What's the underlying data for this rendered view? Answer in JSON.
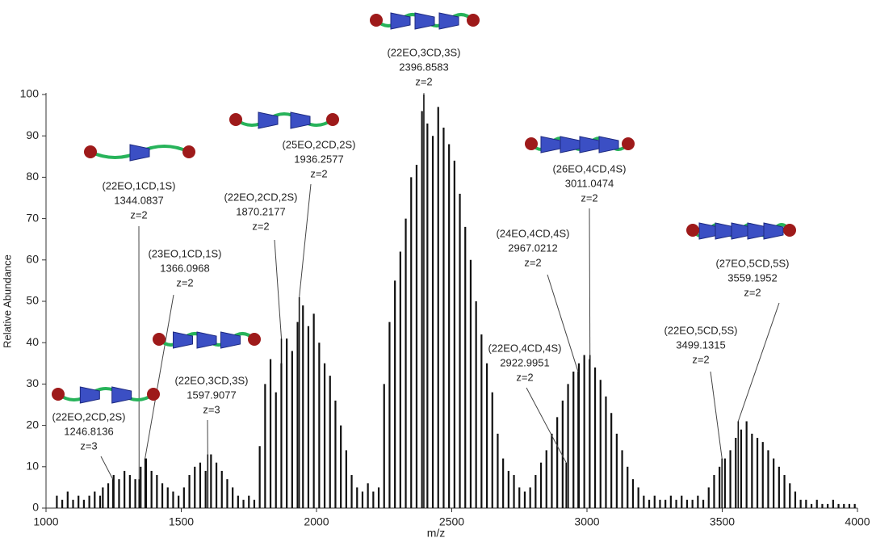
{
  "chart_data": {
    "type": "spectrum",
    "x_label": "m/z",
    "y_label": "Relative Abundance",
    "xlim": [
      1000,
      4000
    ],
    "xticks": [
      1000,
      1500,
      2000,
      2500,
      3000,
      3500,
      4000
    ],
    "ylim": [
      0,
      100
    ],
    "yticks": [
      0,
      10,
      20,
      30,
      40,
      50,
      60,
      70,
      80,
      90,
      100
    ],
    "color": "#111111",
    "x": [
      1040,
      1060,
      1080,
      1100,
      1120,
      1140,
      1160,
      1180,
      1200,
      1210,
      1230,
      1250,
      1270,
      1290,
      1310,
      1330,
      1350,
      1370,
      1390,
      1410,
      1430,
      1450,
      1470,
      1490,
      1510,
      1530,
      1550,
      1570,
      1590,
      1610,
      1630,
      1650,
      1670,
      1690,
      1710,
      1730,
      1750,
      1770,
      1790,
      1810,
      1830,
      1850,
      1870,
      1890,
      1910,
      1930,
      1950,
      1970,
      1990,
      2010,
      2030,
      2050,
      2070,
      2090,
      2110,
      2130,
      2150,
      2170,
      2190,
      2210,
      2230,
      2250,
      2270,
      2290,
      2310,
      2330,
      2350,
      2370,
      2390,
      2410,
      2430,
      2450,
      2470,
      2490,
      2510,
      2530,
      2550,
      2570,
      2590,
      2610,
      2630,
      2650,
      2670,
      2690,
      2710,
      2730,
      2750,
      2770,
      2790,
      2810,
      2830,
      2850,
      2870,
      2890,
      2910,
      2930,
      2950,
      2970,
      2990,
      3010,
      3030,
      3050,
      3070,
      3090,
      3110,
      3130,
      3150,
      3170,
      3190,
      3210,
      3230,
      3250,
      3270,
      3290,
      3310,
      3330,
      3350,
      3370,
      3390,
      3410,
      3430,
      3450,
      3470,
      3490,
      3510,
      3530,
      3550,
      3570,
      3590,
      3610,
      3630,
      3650,
      3670,
      3690,
      3710,
      3730,
      3750,
      3770,
      3790,
      3810,
      3830,
      3850,
      3870,
      3890,
      3910,
      3930,
      3950,
      3970,
      3990
    ],
    "values": [
      3,
      2,
      4,
      2,
      3,
      2,
      3,
      4,
      3,
      5,
      6,
      8,
      7,
      9,
      8,
      7,
      10,
      12,
      9,
      8,
      6,
      5,
      4,
      3,
      5,
      8,
      10,
      11,
      9,
      13,
      11,
      9,
      7,
      5,
      3,
      2,
      3,
      2,
      15,
      30,
      36,
      28,
      35,
      41,
      38,
      45,
      49,
      44,
      47,
      40,
      35,
      32,
      26,
      20,
      14,
      8,
      5,
      4,
      6,
      4,
      5,
      30,
      45,
      55,
      62,
      70,
      80,
      83,
      96,
      93,
      90,
      97,
      92,
      88,
      84,
      76,
      68,
      60,
      50,
      42,
      35,
      28,
      18,
      12,
      9,
      8,
      5,
      4,
      5,
      8,
      11,
      14,
      18,
      22,
      26,
      30,
      33,
      35,
      37,
      36,
      34,
      31,
      27,
      23,
      18,
      14,
      10,
      7,
      5,
      3,
      2,
      3,
      2,
      2,
      3,
      2,
      3,
      2,
      2,
      3,
      2,
      5,
      8,
      10,
      12,
      14,
      17,
      19,
      21,
      18,
      17,
      16,
      14,
      12,
      10,
      8,
      6,
      4,
      2,
      2,
      1,
      2,
      1,
      1,
      2,
      1,
      1,
      1,
      1
    ],
    "annotations": [
      {
        "label": "(22EO,2CD,2S)",
        "mz": 1246.8136,
        "charge": "z=3",
        "y": 7
      },
      {
        "label": "(22EO,3CD,3S)",
        "mz": 1597.9077,
        "charge": "z=3",
        "y": 13
      },
      {
        "label": "(22EO,1CD,1S)",
        "mz": 1344.0837,
        "charge": "z=2",
        "y": 7
      },
      {
        "label": "(23EO,1CD,1S)",
        "mz": 1366.0968,
        "charge": "z=2",
        "y": 12
      },
      {
        "label": "(22EO,2CD,2S)",
        "mz": 1870.2177,
        "charge": "z=2",
        "y": 41
      },
      {
        "label": "(25EO,2CD,2S)",
        "mz": 1936.2577,
        "charge": "z=2",
        "y": 51
      },
      {
        "label": "(22EO,3CD,3S)",
        "mz": 2396.8583,
        "charge": "z=2",
        "y": 100
      },
      {
        "label": "(26EO,4CD,4S)",
        "mz": 3011.0474,
        "charge": "z=2",
        "y": 37
      },
      {
        "label": "(24EO,4CD,4S)",
        "mz": 2967.0212,
        "charge": "z=2",
        "y": 33
      },
      {
        "label": "(22EO,4CD,4S)",
        "mz": 2922.9951,
        "charge": "z=2",
        "y": 11
      },
      {
        "label": "(27EO,5CD,5S)",
        "mz": 3559.1952,
        "charge": "z=2",
        "y": 21
      },
      {
        "label": "(22EO,5CD,5S)",
        "mz": 3499.1315,
        "charge": "z=2",
        "y": 12
      }
    ]
  }
}
